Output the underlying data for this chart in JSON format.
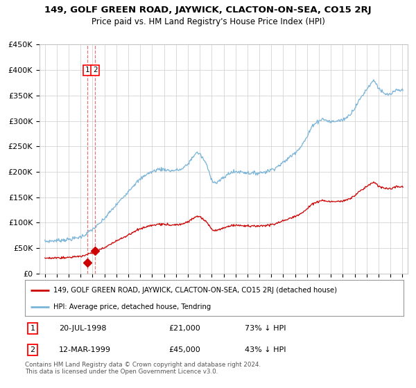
{
  "title": "149, GOLF GREEN ROAD, JAYWICK, CLACTON-ON-SEA, CO15 2RJ",
  "subtitle": "Price paid vs. HM Land Registry's House Price Index (HPI)",
  "legend_line1": "149, GOLF GREEN ROAD, JAYWICK, CLACTON-ON-SEA, CO15 2RJ (detached house)",
  "legend_line2": "HPI: Average price, detached house, Tendring",
  "transaction1_date": "20-JUL-1998",
  "transaction1_price": 21000,
  "transaction1_pct": "73% ↓ HPI",
  "transaction2_date": "12-MAR-1999",
  "transaction2_price": 45000,
  "transaction2_pct": "43% ↓ HPI",
  "footnote": "Contains HM Land Registry data © Crown copyright and database right 2024.\nThis data is licensed under the Open Government Licence v3.0.",
  "hpi_color": "#7ab4d8",
  "price_color": "#cc0000",
  "dashed_color": "#e06060",
  "marker_color": "#cc0000",
  "background_color": "#ffffff",
  "grid_color": "#cccccc",
  "ylim": [
    0,
    450000
  ],
  "yticks": [
    0,
    50000,
    100000,
    150000,
    200000,
    250000,
    300000,
    350000,
    400000,
    450000
  ],
  "hpi_anchors_x": [
    1995.0,
    1995.5,
    1996.0,
    1996.5,
    1997.0,
    1997.5,
    1998.0,
    1998.5,
    1998.75,
    1999.2,
    1999.5,
    2000.0,
    2000.5,
    2001.0,
    2001.5,
    2002.0,
    2002.5,
    2003.0,
    2003.5,
    2004.0,
    2004.5,
    2005.0,
    2005.5,
    2006.0,
    2006.5,
    2007.0,
    2007.5,
    2007.75,
    2008.0,
    2008.5,
    2009.0,
    2009.3,
    2009.5,
    2010.0,
    2010.5,
    2011.0,
    2011.5,
    2012.0,
    2012.5,
    2013.0,
    2013.5,
    2014.0,
    2014.5,
    2015.0,
    2015.5,
    2016.0,
    2016.5,
    2017.0,
    2017.5,
    2018.0,
    2018.25,
    2018.5,
    2019.0,
    2019.5,
    2020.0,
    2020.5,
    2021.0,
    2021.5,
    2022.0,
    2022.3,
    2022.6,
    2022.75,
    2023.0,
    2023.5,
    2024.0,
    2024.5,
    2025.0
  ],
  "hpi_anchors_y": [
    63000,
    64000,
    65000,
    66000,
    67000,
    69000,
    72000,
    78000,
    83000,
    90000,
    96000,
    108000,
    122000,
    135000,
    148000,
    162000,
    175000,
    185000,
    195000,
    200000,
    205000,
    205000,
    202000,
    203000,
    205000,
    215000,
    232000,
    238000,
    235000,
    218000,
    185000,
    178000,
    180000,
    188000,
    198000,
    200000,
    200000,
    198000,
    197000,
    198000,
    200000,
    204000,
    210000,
    218000,
    228000,
    238000,
    250000,
    268000,
    293000,
    300000,
    304000,
    302000,
    298000,
    300000,
    302000,
    310000,
    325000,
    345000,
    362000,
    372000,
    380000,
    376000,
    365000,
    352000,
    352000,
    360000,
    360000
  ],
  "t1": 1998.55,
  "t2": 1999.21,
  "p1": 21000,
  "p2": 45000,
  "price_ratio": 0.473
}
